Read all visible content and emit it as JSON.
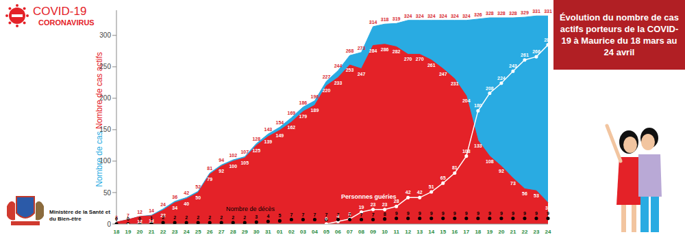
{
  "chart_data": {
    "type": "area",
    "title": "Évolution du nombre de cas actifs porteurs de la COVID-19 à Maurice du 18 mars au 24 avril",
    "annotations": [
      "COVID-19",
      "CORONAVIRUS",
      "Ministère de la Santé et du Bien-être"
    ],
    "categories": [
      "18",
      "19",
      "20",
      "21",
      "22",
      "23",
      "24",
      "25",
      "26",
      "27",
      "28",
      "29",
      "30",
      "31",
      "01",
      "02",
      "03",
      "04",
      "05",
      "06",
      "07",
      "08",
      "09",
      "10",
      "11",
      "12",
      "13",
      "14",
      "15",
      "16",
      "17",
      "18",
      "19",
      "20",
      "21",
      "22",
      "23",
      "24"
    ],
    "series": [
      {
        "name": "Nombre de cas",
        "type": "area",
        "color": "#29abe2",
        "values": [
          3,
          7,
          12,
          14,
          24,
          36,
          42,
          52,
          81,
          94,
          102,
          107,
          128,
          143,
          154,
          169,
          186,
          196,
          227,
          244,
          268,
          273,
          314,
          318,
          319,
          324,
          324,
          324,
          324,
          324,
          324,
          326,
          328,
          328,
          328,
          329,
          331,
          331
        ]
      },
      {
        "name": "Nombre de cas actifs",
        "type": "area",
        "color": "#e42228",
        "values": [
          3,
          7,
          12,
          13,
          22,
          34,
          40,
          50,
          79,
          92,
          100,
          105,
          125,
          139,
          149,
          162,
          179,
          189,
          220,
          233,
          253,
          247,
          284,
          286,
          282,
          270,
          270,
          261,
          247,
          231,
          204,
          133,
          108,
          92,
          73,
          56,
          53,
          34
        ]
      },
      {
        "name": "Personnes guéries",
        "type": "line",
        "color": "#ffffff",
        "marker": "circle",
        "line_style": "solid",
        "values": [
          null,
          null,
          null,
          null,
          null,
          null,
          null,
          null,
          null,
          null,
          null,
          null,
          null,
          null,
          null,
          null,
          null,
          null,
          0,
          4,
          8,
          19,
          23,
          23,
          28,
          42,
          42,
          51,
          65,
          81,
          108,
          180,
          208,
          224,
          243,
          261,
          266,
          285
        ]
      },
      {
        "name": "Nombre de décès",
        "type": "line",
        "color": "#000000",
        "marker": "circle",
        "line_style": "none",
        "values": [
          0,
          0,
          0,
          1,
          2,
          2,
          2,
          2,
          2,
          2,
          2,
          2,
          3,
          4,
          5,
          7,
          7,
          7,
          7,
          7,
          7,
          7,
          7,
          8,
          9,
          9,
          9,
          9,
          9,
          9,
          9,
          9,
          9,
          9,
          9,
          9,
          9,
          9
        ]
      }
    ],
    "ylim": [
      0,
      340
    ],
    "yticks": [
      0,
      50,
      100,
      150,
      200,
      250,
      300
    ],
    "grid": false,
    "data_labels": true
  }
}
